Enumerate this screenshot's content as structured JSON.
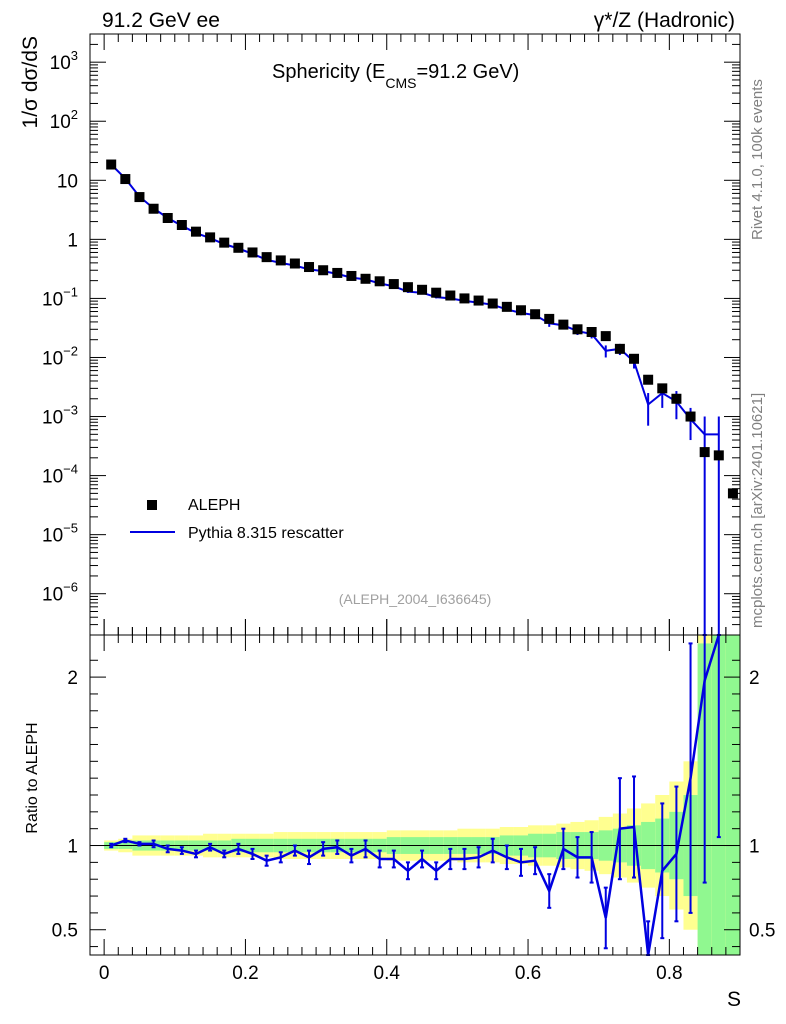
{
  "header": {
    "left": "91.2 GeV ee",
    "right": "γ*/Z (Hadronic)"
  },
  "side_labels": {
    "top": "Rivet 4.1.0,  100k events",
    "bottom": "mcplots.cern.ch [arXiv:2401.10621]"
  },
  "chart_data": [
    {
      "type": "scatter",
      "role": "main",
      "title_main": "Sphericity (E",
      "title_sub": "CMS",
      "title_tail": "=91.2 GeV)",
      "ylabel": "1/σ  dσ/dS",
      "yscale": "log",
      "ylim": [
        2e-07,
        3000
      ],
      "xlim": [
        -0.02,
        0.9
      ],
      "y_ticks": [
        {
          "value": 1e-06,
          "base": "10",
          "exp": "−6"
        },
        {
          "value": 1e-05,
          "base": "10",
          "exp": "−5"
        },
        {
          "value": 0.0001,
          "base": "10",
          "exp": "−4"
        },
        {
          "value": 0.001,
          "base": "10",
          "exp": "−3"
        },
        {
          "value": 0.01,
          "base": "10",
          "exp": "−2"
        },
        {
          "value": 0.1,
          "base": "10",
          "exp": "−1"
        },
        {
          "value": 1,
          "base": "1",
          "exp": ""
        },
        {
          "value": 10,
          "base": "10",
          "exp": ""
        },
        {
          "value": 100,
          "base": "10",
          "exp": "2"
        },
        {
          "value": 1000,
          "base": "10",
          "exp": "3"
        }
      ],
      "watermark": "(ALEPH_2004_I636645)",
      "legend": {
        "position": "bottom-left",
        "entries": [
          {
            "label": "ALEPH",
            "style": "marker",
            "color": "#000000"
          },
          {
            "label": "Pythia 8.315 rescatter",
            "style": "line",
            "color": "#0000e0"
          }
        ]
      },
      "series": [
        {
          "name": "ALEPH",
          "x": [
            0.01,
            0.03,
            0.05,
            0.07,
            0.09,
            0.11,
            0.13,
            0.15,
            0.17,
            0.19,
            0.21,
            0.23,
            0.25,
            0.27,
            0.29,
            0.31,
            0.33,
            0.35,
            0.37,
            0.39,
            0.41,
            0.43,
            0.45,
            0.47,
            0.49,
            0.51,
            0.53,
            0.55,
            0.57,
            0.59,
            0.61,
            0.63,
            0.65,
            0.67,
            0.69,
            0.71,
            0.73,
            0.75,
            0.77,
            0.79,
            0.81,
            0.83,
            0.85,
            0.87,
            0.89
          ],
          "y": [
            18.5,
            10.5,
            5.2,
            3.3,
            2.3,
            1.75,
            1.35,
            1.08,
            0.88,
            0.72,
            0.6,
            0.5,
            0.44,
            0.39,
            0.34,
            0.3,
            0.27,
            0.24,
            0.215,
            0.195,
            0.175,
            0.155,
            0.14,
            0.125,
            0.112,
            0.1,
            0.092,
            0.082,
            0.072,
            0.063,
            0.054,
            0.045,
            0.036,
            0.03,
            0.027,
            0.023,
            0.014,
            0.0095,
            0.0042,
            0.003,
            0.002,
            0.001,
            0.00025,
            0.00022,
            5e-05
          ]
        },
        {
          "name": "Pythia 8.315 rescatter",
          "x": [
            0.01,
            0.03,
            0.05,
            0.07,
            0.09,
            0.11,
            0.13,
            0.15,
            0.17,
            0.19,
            0.21,
            0.23,
            0.25,
            0.27,
            0.29,
            0.31,
            0.33,
            0.35,
            0.37,
            0.39,
            0.41,
            0.43,
            0.45,
            0.47,
            0.49,
            0.51,
            0.53,
            0.55,
            0.57,
            0.59,
            0.61,
            0.63,
            0.65,
            0.67,
            0.69,
            0.71,
            0.73,
            0.75,
            0.77,
            0.79,
            0.81,
            0.83,
            0.85,
            0.87
          ],
          "y": [
            18.5,
            10.7,
            5.3,
            3.35,
            2.3,
            1.7,
            1.28,
            1.05,
            0.83,
            0.7,
            0.57,
            0.45,
            0.4,
            0.36,
            0.31,
            0.29,
            0.26,
            0.225,
            0.21,
            0.18,
            0.16,
            0.13,
            0.125,
            0.105,
            0.1,
            0.091,
            0.085,
            0.078,
            0.065,
            0.057,
            0.052,
            0.038,
            0.035,
            0.028,
            0.025,
            0.013,
            0.014,
            0.0085,
            0.0016,
            0.0025,
            0.0018,
            0.0009,
            0.0005,
            0.0005
          ],
          "y_lo": [
            18.2,
            10.5,
            5.2,
            3.3,
            2.26,
            1.67,
            1.26,
            1.03,
            0.81,
            0.68,
            0.55,
            0.44,
            0.39,
            0.35,
            0.3,
            0.28,
            0.25,
            0.218,
            0.2,
            0.174,
            0.154,
            0.124,
            0.119,
            0.1,
            0.095,
            0.086,
            0.08,
            0.073,
            0.06,
            0.052,
            0.047,
            0.033,
            0.03,
            0.024,
            0.021,
            0.01,
            0.011,
            0.0065,
            0.0007,
            0.0014,
            0.0009,
            0.0004,
            1e-07,
            1e-07
          ],
          "y_hi": [
            18.8,
            10.9,
            5.4,
            3.4,
            2.34,
            1.73,
            1.3,
            1.07,
            0.85,
            0.72,
            0.59,
            0.46,
            0.41,
            0.37,
            0.32,
            0.3,
            0.27,
            0.232,
            0.22,
            0.186,
            0.166,
            0.136,
            0.131,
            0.11,
            0.105,
            0.096,
            0.09,
            0.083,
            0.07,
            0.062,
            0.057,
            0.043,
            0.04,
            0.032,
            0.029,
            0.016,
            0.017,
            0.0105,
            0.0025,
            0.0036,
            0.0027,
            0.0014,
            0.001,
            0.001
          ]
        }
      ]
    },
    {
      "type": "line",
      "role": "ratio",
      "ylabel": "Ratio to ALEPH",
      "xlabel": "S",
      "ylim": [
        0.35,
        2.25
      ],
      "xlim": [
        -0.02,
        0.9
      ],
      "x_ticks": [
        0,
        0.2,
        0.4,
        0.6,
        0.8
      ],
      "x_tick_labels": [
        "0",
        "0.2",
        "0.4",
        "0.6",
        "0.8"
      ],
      "y_ticks": [
        0.5,
        1,
        2
      ],
      "y_tick_labels": [
        "0.5",
        "1",
        "2"
      ],
      "bands": {
        "edges": [
          0,
          0.02,
          0.04,
          0.06,
          0.08,
          0.1,
          0.12,
          0.14,
          0.16,
          0.18,
          0.2,
          0.22,
          0.24,
          0.26,
          0.28,
          0.3,
          0.32,
          0.34,
          0.36,
          0.38,
          0.4,
          0.42,
          0.44,
          0.46,
          0.48,
          0.5,
          0.52,
          0.54,
          0.56,
          0.58,
          0.6,
          0.62,
          0.64,
          0.66,
          0.68,
          0.7,
          0.72,
          0.74,
          0.76,
          0.78,
          0.8,
          0.82,
          0.84,
          0.86,
          0.88,
          0.9
        ],
        "green_half_width": [
          0.02,
          0.02,
          0.03,
          0.03,
          0.03,
          0.03,
          0.03,
          0.03,
          0.03,
          0.04,
          0.04,
          0.04,
          0.04,
          0.04,
          0.04,
          0.04,
          0.04,
          0.04,
          0.04,
          0.04,
          0.05,
          0.05,
          0.05,
          0.05,
          0.05,
          0.05,
          0.05,
          0.05,
          0.06,
          0.06,
          0.07,
          0.07,
          0.08,
          0.08,
          0.08,
          0.09,
          0.1,
          0.12,
          0.14,
          0.16,
          0.2,
          0.3,
          1.2,
          1.3,
          1.4
        ],
        "yellow_half_width": [
          0.03,
          0.04,
          0.06,
          0.06,
          0.06,
          0.06,
          0.06,
          0.07,
          0.07,
          0.07,
          0.07,
          0.07,
          0.08,
          0.08,
          0.08,
          0.08,
          0.08,
          0.08,
          0.08,
          0.08,
          0.09,
          0.09,
          0.09,
          0.09,
          0.09,
          0.1,
          0.1,
          0.1,
          0.11,
          0.11,
          0.12,
          0.12,
          0.13,
          0.14,
          0.15,
          0.17,
          0.19,
          0.22,
          0.25,
          0.3,
          0.38,
          0.5,
          1.5,
          1.5,
          1.5
        ],
        "colors": {
          "inner": "#90f890",
          "outer": "#ffff90"
        }
      },
      "series": [
        {
          "name": "Pythia 8.315 rescatter / ALEPH",
          "color": "#0000e0",
          "x": [
            0.01,
            0.03,
            0.05,
            0.07,
            0.09,
            0.11,
            0.13,
            0.15,
            0.17,
            0.19,
            0.21,
            0.23,
            0.25,
            0.27,
            0.29,
            0.31,
            0.33,
            0.35,
            0.37,
            0.39,
            0.41,
            0.43,
            0.45,
            0.47,
            0.49,
            0.51,
            0.53,
            0.55,
            0.57,
            0.59,
            0.61,
            0.63,
            0.65,
            0.67,
            0.69,
            0.71,
            0.73,
            0.75,
            0.77,
            0.79,
            0.81,
            0.83,
            0.85,
            0.87
          ],
          "y": [
            1.0,
            1.03,
            1.01,
            1.01,
            0.98,
            0.97,
            0.95,
            0.99,
            0.95,
            0.98,
            0.95,
            0.91,
            0.93,
            0.97,
            0.93,
            0.98,
            0.99,
            0.94,
            0.98,
            0.92,
            0.92,
            0.85,
            0.92,
            0.85,
            0.92,
            0.92,
            0.93,
            0.97,
            0.93,
            0.9,
            0.91,
            0.73,
            0.98,
            0.93,
            0.93,
            0.57,
            1.1,
            1.11,
            0.35,
            0.85,
            0.95,
            1.4,
            1.98,
            2.25
          ],
          "err": [
            0.01,
            0.01,
            0.01,
            0.02,
            0.02,
            0.02,
            0.02,
            0.02,
            0.02,
            0.03,
            0.03,
            0.03,
            0.03,
            0.03,
            0.04,
            0.04,
            0.04,
            0.04,
            0.05,
            0.05,
            0.05,
            0.05,
            0.05,
            0.05,
            0.06,
            0.06,
            0.06,
            0.07,
            0.07,
            0.08,
            0.08,
            0.1,
            0.12,
            0.12,
            0.15,
            0.18,
            0.3,
            0.3,
            0.2,
            0.4,
            0.4,
            0.8,
            1.2,
            1.2
          ]
        }
      ]
    }
  ]
}
